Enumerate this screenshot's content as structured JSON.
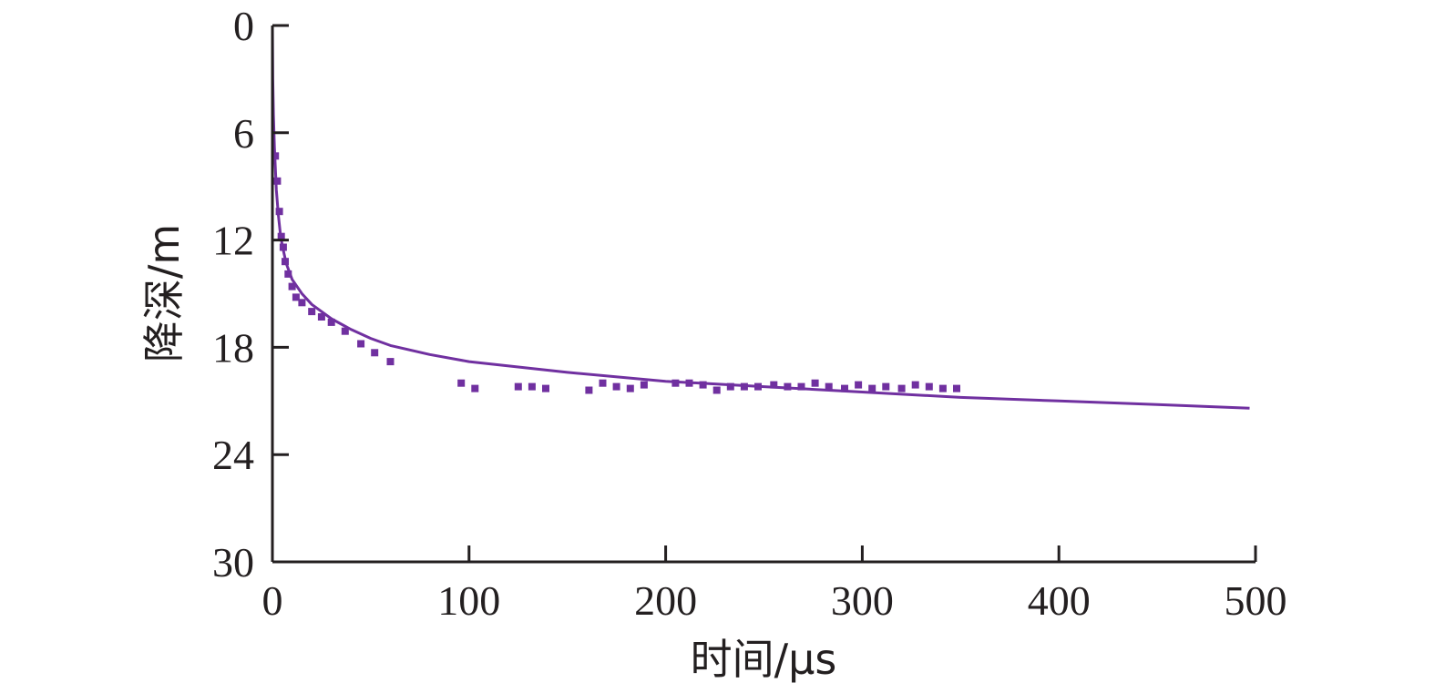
{
  "chart_data": {
    "type": "scatter",
    "xlabel": "时间/μs",
    "ylabel": "降深/m",
    "xlim": [
      0,
      500
    ],
    "ylim": [
      0,
      30
    ],
    "y_inverted": true,
    "grid": false,
    "legend": "none",
    "x_ticks": [
      "0",
      "100",
      "200",
      "300",
      "400",
      "500"
    ],
    "y_ticks": [
      "0",
      "6",
      "12",
      "18",
      "24",
      "30"
    ],
    "colors": {
      "series": "#7030a0",
      "axis": "#231f20"
    },
    "series": [
      {
        "kind": "markers",
        "points": [
          [
            1.5,
            7.3
          ],
          [
            2.5,
            8.7
          ],
          [
            3.5,
            10.4
          ],
          [
            4.5,
            11.8
          ],
          [
            5.5,
            12.4
          ],
          [
            6.5,
            13.2
          ],
          [
            8,
            13.9
          ],
          [
            10,
            14.6
          ],
          [
            12,
            15.2
          ],
          [
            15,
            15.5
          ],
          [
            20,
            16.0
          ],
          [
            25,
            16.3
          ],
          [
            30,
            16.6
          ],
          [
            37,
            17.1
          ],
          [
            45,
            17.8
          ],
          [
            52,
            18.3
          ],
          [
            60,
            18.8
          ],
          [
            96,
            20.0
          ],
          [
            103,
            20.3
          ],
          [
            125,
            20.2
          ],
          [
            132,
            20.2
          ],
          [
            139,
            20.3
          ],
          [
            161,
            20.4
          ],
          [
            168,
            20.0
          ],
          [
            175,
            20.2
          ],
          [
            182,
            20.3
          ],
          [
            189,
            20.1
          ],
          [
            205,
            20.0
          ],
          [
            212,
            20.0
          ],
          [
            219,
            20.1
          ],
          [
            226,
            20.4
          ],
          [
            233,
            20.2
          ],
          [
            240,
            20.2
          ],
          [
            247,
            20.2
          ],
          [
            255,
            20.1
          ],
          [
            262,
            20.2
          ],
          [
            269,
            20.2
          ],
          [
            276,
            20.0
          ],
          [
            283,
            20.2
          ],
          [
            291,
            20.3
          ],
          [
            298,
            20.1
          ],
          [
            305,
            20.3
          ],
          [
            312,
            20.2
          ],
          [
            320,
            20.3
          ],
          [
            327,
            20.1
          ],
          [
            334,
            20.2
          ],
          [
            341,
            20.3
          ],
          [
            348,
            20.3
          ]
        ]
      },
      {
        "kind": "line",
        "points": [
          [
            0,
            0
          ],
          [
            0.2,
            3
          ],
          [
            0.5,
            5
          ],
          [
            1,
            6.8
          ],
          [
            2,
            9.2
          ],
          [
            3,
            10.6
          ],
          [
            4,
            11.6
          ],
          [
            5,
            12.3
          ],
          [
            7,
            13.3
          ],
          [
            10,
            14.2
          ],
          [
            15,
            15.0
          ],
          [
            20,
            15.6
          ],
          [
            30,
            16.4
          ],
          [
            40,
            17.0
          ],
          [
            50,
            17.5
          ],
          [
            60,
            17.9
          ],
          [
            80,
            18.4
          ],
          [
            100,
            18.8
          ],
          [
            150,
            19.4
          ],
          [
            200,
            19.9
          ],
          [
            250,
            20.2
          ],
          [
            300,
            20.5
          ],
          [
            350,
            20.8
          ],
          [
            400,
            21.0
          ],
          [
            450,
            21.2
          ],
          [
            497,
            21.4
          ]
        ]
      }
    ]
  }
}
